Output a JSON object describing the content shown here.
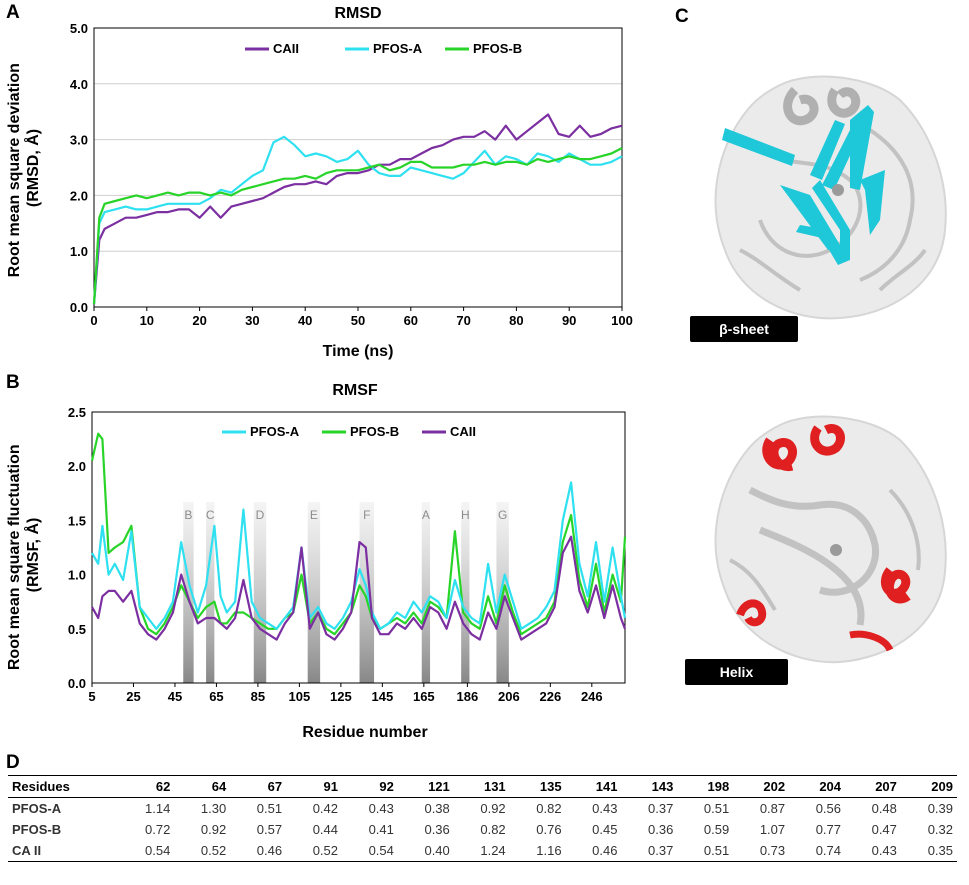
{
  "panels": {
    "a": "A",
    "b": "B",
    "c": "C",
    "d": "D"
  },
  "colors": {
    "CAII": "#7b2fa0",
    "PFOS-A": "#2ee0f0",
    "PFOS-B": "#28d428",
    "beta": "#1ec8d8",
    "helix": "#e02020"
  },
  "chart_data": [
    {
      "type": "line",
      "title": "RMSD",
      "xlabel": "Time (ns)",
      "ylabel": "Root mean square deviation (RMSD, Å)",
      "xlim": [
        0,
        100
      ],
      "ylim": [
        0,
        5
      ],
      "xticks": [
        "0",
        "10",
        "20",
        "30",
        "40",
        "50",
        "60",
        "70",
        "80",
        "90",
        "100"
      ],
      "yticks": [
        "0.0",
        "1.0",
        "2.0",
        "3.0",
        "4.0",
        "5.0"
      ],
      "legend": [
        "CAII",
        "PFOS-A",
        "PFOS-B"
      ],
      "x": [
        0,
        1,
        2,
        4,
        6,
        8,
        10,
        12,
        14,
        16,
        18,
        20,
        22,
        24,
        26,
        28,
        30,
        32,
        34,
        36,
        38,
        40,
        42,
        44,
        46,
        48,
        50,
        52,
        54,
        56,
        58,
        60,
        62,
        64,
        66,
        68,
        70,
        72,
        74,
        76,
        78,
        80,
        82,
        84,
        86,
        88,
        90,
        92,
        94,
        96,
        98,
        100
      ],
      "series": [
        {
          "name": "CAII",
          "values": [
            0.05,
            1.2,
            1.4,
            1.5,
            1.6,
            1.6,
            1.65,
            1.7,
            1.7,
            1.75,
            1.75,
            1.6,
            1.8,
            1.6,
            1.8,
            1.85,
            1.9,
            1.95,
            2.05,
            2.15,
            2.2,
            2.2,
            2.25,
            2.2,
            2.35,
            2.4,
            2.4,
            2.45,
            2.55,
            2.55,
            2.65,
            2.65,
            2.75,
            2.85,
            2.9,
            3.0,
            3.05,
            3.05,
            3.15,
            3.0,
            3.25,
            3.0,
            3.15,
            3.3,
            3.45,
            3.1,
            3.05,
            3.25,
            3.05,
            3.1,
            3.2,
            3.25
          ]
        },
        {
          "name": "PFOS-A",
          "values": [
            0.05,
            1.5,
            1.7,
            1.75,
            1.8,
            1.75,
            1.75,
            1.8,
            1.85,
            1.85,
            1.85,
            1.85,
            1.95,
            2.1,
            2.05,
            2.2,
            2.35,
            2.45,
            2.95,
            3.05,
            2.9,
            2.7,
            2.75,
            2.7,
            2.6,
            2.65,
            2.8,
            2.55,
            2.4,
            2.35,
            2.35,
            2.5,
            2.45,
            2.4,
            2.35,
            2.3,
            2.4,
            2.6,
            2.8,
            2.55,
            2.7,
            2.65,
            2.55,
            2.75,
            2.7,
            2.6,
            2.75,
            2.65,
            2.55,
            2.55,
            2.6,
            2.7
          ]
        },
        {
          "name": "PFOS-B",
          "values": [
            0.05,
            1.6,
            1.85,
            1.9,
            1.95,
            2.0,
            1.95,
            2.0,
            2.05,
            2.0,
            2.05,
            2.05,
            2.0,
            2.05,
            2.0,
            2.1,
            2.15,
            2.2,
            2.25,
            2.3,
            2.3,
            2.35,
            2.3,
            2.4,
            2.45,
            2.45,
            2.45,
            2.5,
            2.55,
            2.45,
            2.5,
            2.6,
            2.6,
            2.5,
            2.5,
            2.5,
            2.55,
            2.55,
            2.6,
            2.55,
            2.6,
            2.6,
            2.55,
            2.65,
            2.6,
            2.65,
            2.7,
            2.65,
            2.65,
            2.7,
            2.75,
            2.85
          ]
        }
      ]
    },
    {
      "type": "line",
      "title": "RMSF",
      "xlabel": "Residue number",
      "ylabel": "Root mean square fluctuation (RMSF, Å)",
      "xlim": [
        5,
        262
      ],
      "ylim": [
        0,
        2.5
      ],
      "xticks": [
        "5",
        "25",
        "45",
        "65",
        "85",
        "105",
        "125",
        "145",
        "165",
        "186",
        "206",
        "226",
        "246"
      ],
      "yticks": [
        "0.0",
        "0.5",
        "1.0",
        "1.5",
        "2.0",
        "2.5"
      ],
      "legend": [
        "PFOS-A",
        "PFOS-B",
        "CAII"
      ],
      "regions": [
        {
          "label": "B",
          "start": 49,
          "end": 54
        },
        {
          "label": "C",
          "start": 60,
          "end": 64
        },
        {
          "label": "D",
          "start": 83,
          "end": 89
        },
        {
          "label": "E",
          "start": 109,
          "end": 115
        },
        {
          "label": "F",
          "start": 134,
          "end": 141
        },
        {
          "label": "A",
          "start": 164,
          "end": 168
        },
        {
          "label": "H",
          "start": 183,
          "end": 187
        },
        {
          "label": "G",
          "start": 200,
          "end": 206
        }
      ],
      "x": [
        5,
        8,
        10,
        13,
        16,
        20,
        24,
        28,
        32,
        36,
        40,
        44,
        48,
        52,
        56,
        60,
        64,
        67,
        70,
        74,
        78,
        82,
        86,
        90,
        94,
        98,
        102,
        106,
        110,
        114,
        118,
        122,
        126,
        130,
        134,
        137,
        140,
        144,
        148,
        152,
        156,
        160,
        164,
        168,
        172,
        176,
        180,
        184,
        188,
        192,
        196,
        200,
        204,
        208,
        212,
        216,
        220,
        224,
        228,
        232,
        236,
        240,
        244,
        248,
        252,
        256,
        260,
        262
      ],
      "series": [
        {
          "name": "PFOS-A",
          "values": [
            1.2,
            1.1,
            1.45,
            1.0,
            1.1,
            0.95,
            1.4,
            0.7,
            0.6,
            0.5,
            0.6,
            0.75,
            1.3,
            0.9,
            0.65,
            0.9,
            1.45,
            0.8,
            0.65,
            0.75,
            1.6,
            0.75,
            0.6,
            0.55,
            0.5,
            0.6,
            0.7,
            1.25,
            0.6,
            0.7,
            0.55,
            0.5,
            0.6,
            0.75,
            1.05,
            0.9,
            0.65,
            0.5,
            0.55,
            0.65,
            0.6,
            0.75,
            0.65,
            0.8,
            0.75,
            0.6,
            0.95,
            0.7,
            0.6,
            0.55,
            1.1,
            0.65,
            1.0,
            0.75,
            0.5,
            0.55,
            0.6,
            0.7,
            0.85,
            1.5,
            1.85,
            1.1,
            0.8,
            1.3,
            0.75,
            1.25,
            0.8,
            0.6
          ]
        },
        {
          "name": "PFOS-B",
          "values": [
            2.05,
            2.3,
            2.25,
            1.2,
            1.25,
            1.3,
            1.45,
            0.7,
            0.5,
            0.45,
            0.55,
            0.7,
            0.9,
            0.75,
            0.6,
            0.7,
            0.75,
            0.55,
            0.55,
            0.65,
            0.65,
            0.6,
            0.55,
            0.5,
            0.5,
            0.6,
            0.65,
            1.0,
            0.55,
            0.65,
            0.5,
            0.45,
            0.55,
            0.65,
            0.9,
            0.8,
            0.6,
            0.5,
            0.55,
            0.6,
            0.55,
            0.65,
            0.55,
            0.75,
            0.7,
            0.6,
            1.4,
            0.65,
            0.55,
            0.5,
            0.8,
            0.55,
            0.9,
            0.65,
            0.45,
            0.5,
            0.55,
            0.6,
            0.75,
            1.3,
            1.55,
            0.95,
            0.7,
            1.1,
            0.65,
            1.0,
            0.75,
            1.35
          ]
        },
        {
          "name": "CAII",
          "values": [
            0.7,
            0.6,
            0.8,
            0.85,
            0.85,
            0.75,
            0.85,
            0.55,
            0.45,
            0.4,
            0.5,
            0.65,
            1.0,
            0.75,
            0.55,
            0.6,
            0.6,
            0.55,
            0.5,
            0.6,
            0.95,
            0.6,
            0.5,
            0.45,
            0.4,
            0.55,
            0.65,
            1.25,
            0.5,
            0.65,
            0.45,
            0.4,
            0.5,
            0.65,
            1.3,
            1.25,
            0.6,
            0.45,
            0.45,
            0.55,
            0.5,
            0.6,
            0.5,
            0.7,
            0.65,
            0.5,
            0.75,
            0.55,
            0.45,
            0.4,
            0.65,
            0.5,
            0.8,
            0.6,
            0.4,
            0.45,
            0.5,
            0.55,
            0.7,
            1.2,
            1.35,
            0.85,
            0.65,
            0.9,
            0.6,
            0.9,
            0.6,
            0.5
          ]
        }
      ]
    }
  ],
  "structures": [
    {
      "label": "β-sheet"
    },
    {
      "label": "Helix"
    }
  ],
  "table": {
    "header": [
      "Residues",
      "62",
      "64",
      "67",
      "91",
      "92",
      "121",
      "131",
      "135",
      "141",
      "143",
      "198",
      "202",
      "204",
      "207",
      "209"
    ],
    "rows": [
      [
        "PFOS-A",
        "1.14",
        "1.30",
        "0.51",
        "0.42",
        "0.43",
        "0.38",
        "0.92",
        "0.82",
        "0.43",
        "0.37",
        "0.51",
        "0.87",
        "0.56",
        "0.48",
        "0.39"
      ],
      [
        "PFOS-B",
        "0.72",
        "0.92",
        "0.57",
        "0.44",
        "0.41",
        "0.36",
        "0.82",
        "0.76",
        "0.45",
        "0.36",
        "0.59",
        "1.07",
        "0.77",
        "0.47",
        "0.32"
      ],
      [
        "CA II",
        "0.54",
        "0.52",
        "0.46",
        "0.52",
        "0.54",
        "0.40",
        "1.24",
        "1.16",
        "0.46",
        "0.37",
        "0.51",
        "0.73",
        "0.74",
        "0.43",
        "0.35"
      ]
    ]
  }
}
